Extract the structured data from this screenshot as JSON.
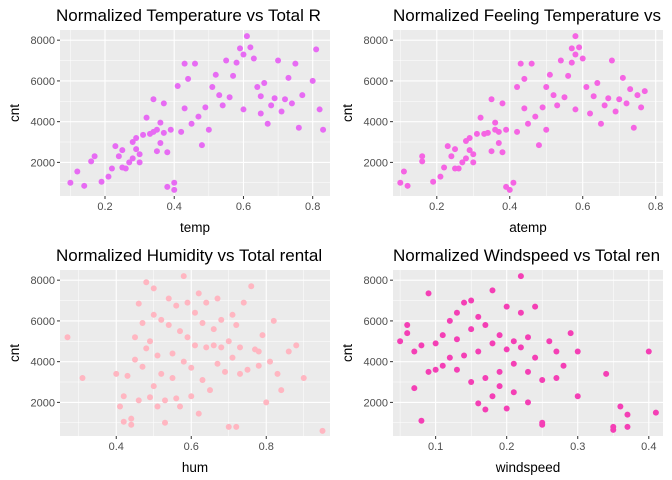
{
  "chart_data": [
    {
      "type": "scatter",
      "title": "Normalized Temperature vs Total R",
      "xlabel": "temp",
      "ylabel": "cnt",
      "xlim": [
        0.07,
        0.85
      ],
      "ylim": [
        350,
        8500
      ],
      "xticks": [
        0.2,
        0.4,
        0.6,
        0.8
      ],
      "xtick_labels": [
        "0.2",
        "0.4",
        "0.6",
        "0.8"
      ],
      "yticks": [
        2000,
        4000,
        6000,
        8000
      ],
      "ytick_labels": [
        "2000",
        "4000",
        "6000",
        "8000"
      ],
      "grid": true,
      "color": "#E76BF3",
      "points": [
        [
          0.1,
          1000
        ],
        [
          0.12,
          1550
        ],
        [
          0.14,
          850
        ],
        [
          0.16,
          2050
        ],
        [
          0.17,
          2300
        ],
        [
          0.19,
          1050
        ],
        [
          0.21,
          1300
        ],
        [
          0.22,
          1700
        ],
        [
          0.23,
          2800
        ],
        [
          0.24,
          2300
        ],
        [
          0.25,
          1750
        ],
        [
          0.25,
          2600
        ],
        [
          0.26,
          1700
        ],
        [
          0.27,
          2000
        ],
        [
          0.28,
          2200
        ],
        [
          0.28,
          3000
        ],
        [
          0.29,
          3200
        ],
        [
          0.29,
          2650
        ],
        [
          0.3,
          2400
        ],
        [
          0.3,
          2000
        ],
        [
          0.31,
          3350
        ],
        [
          0.32,
          4200
        ],
        [
          0.33,
          3400
        ],
        [
          0.34,
          3500
        ],
        [
          0.34,
          5100
        ],
        [
          0.35,
          2550
        ],
        [
          0.35,
          3600
        ],
        [
          0.36,
          3950
        ],
        [
          0.36,
          2950
        ],
        [
          0.37,
          3450
        ],
        [
          0.37,
          4900
        ],
        [
          0.38,
          2500
        ],
        [
          0.38,
          800
        ],
        [
          0.39,
          3600
        ],
        [
          0.4,
          650
        ],
        [
          0.4,
          1000
        ],
        [
          0.41,
          5750
        ],
        [
          0.42,
          3500
        ],
        [
          0.43,
          6850
        ],
        [
          0.43,
          4650
        ],
        [
          0.44,
          6100
        ],
        [
          0.45,
          3900
        ],
        [
          0.46,
          6850
        ],
        [
          0.47,
          4250
        ],
        [
          0.48,
          2850
        ],
        [
          0.49,
          4700
        ],
        [
          0.5,
          3600
        ],
        [
          0.51,
          5700
        ],
        [
          0.52,
          6300
        ],
        [
          0.53,
          5300
        ],
        [
          0.54,
          4800
        ],
        [
          0.55,
          7000
        ],
        [
          0.56,
          5200
        ],
        [
          0.57,
          6250
        ],
        [
          0.58,
          6900
        ],
        [
          0.59,
          7600
        ],
        [
          0.6,
          4600
        ],
        [
          0.6,
          7300
        ],
        [
          0.61,
          8200
        ],
        [
          0.62,
          7650
        ],
        [
          0.63,
          7100
        ],
        [
          0.64,
          5700
        ],
        [
          0.65,
          4400
        ],
        [
          0.65,
          5250
        ],
        [
          0.66,
          5900
        ],
        [
          0.67,
          3900
        ],
        [
          0.68,
          4800
        ],
        [
          0.69,
          5150
        ],
        [
          0.7,
          7000
        ],
        [
          0.71,
          4500
        ],
        [
          0.72,
          5100
        ],
        [
          0.73,
          6150
        ],
        [
          0.74,
          4900
        ],
        [
          0.75,
          6850
        ],
        [
          0.76,
          3700
        ],
        [
          0.77,
          5300
        ],
        [
          0.8,
          6000
        ],
        [
          0.81,
          7550
        ],
        [
          0.82,
          4600
        ],
        [
          0.83,
          3600
        ]
      ]
    },
    {
      "type": "scatter",
      "title": "Normalized Feeling Temperature vs",
      "xlabel": "atemp",
      "ylabel": "cnt",
      "xlim": [
        0.08,
        0.82
      ],
      "ylim": [
        350,
        8500
      ],
      "xticks": [
        0.2,
        0.4,
        0.6,
        0.8
      ],
      "xtick_labels": [
        "0.2",
        "0.4",
        "0.6",
        "0.8"
      ],
      "yticks": [
        2000,
        4000,
        6000,
        8000
      ],
      "ytick_labels": [
        "2000",
        "4000",
        "6000",
        "8000"
      ],
      "grid": true,
      "color": "#F564E3",
      "points": [
        [
          0.1,
          1000
        ],
        [
          0.11,
          1550
        ],
        [
          0.12,
          850
        ],
        [
          0.16,
          2050
        ],
        [
          0.16,
          2300
        ],
        [
          0.19,
          1050
        ],
        [
          0.21,
          1300
        ],
        [
          0.22,
          1750
        ],
        [
          0.23,
          2800
        ],
        [
          0.24,
          2300
        ],
        [
          0.25,
          1700
        ],
        [
          0.25,
          2650
        ],
        [
          0.26,
          1700
        ],
        [
          0.27,
          2000
        ],
        [
          0.28,
          2200
        ],
        [
          0.28,
          3050
        ],
        [
          0.29,
          3200
        ],
        [
          0.29,
          2600
        ],
        [
          0.3,
          2400
        ],
        [
          0.3,
          2000
        ],
        [
          0.31,
          3400
        ],
        [
          0.32,
          4200
        ],
        [
          0.33,
          3400
        ],
        [
          0.34,
          3450
        ],
        [
          0.35,
          5100
        ],
        [
          0.35,
          2550
        ],
        [
          0.36,
          3600
        ],
        [
          0.36,
          3950
        ],
        [
          0.37,
          2950
        ],
        [
          0.37,
          3500
        ],
        [
          0.38,
          4900
        ],
        [
          0.38,
          2500
        ],
        [
          0.39,
          800
        ],
        [
          0.39,
          3600
        ],
        [
          0.4,
          650
        ],
        [
          0.41,
          1000
        ],
        [
          0.42,
          5700
        ],
        [
          0.42,
          3500
        ],
        [
          0.43,
          6850
        ],
        [
          0.44,
          4650
        ],
        [
          0.44,
          6100
        ],
        [
          0.45,
          3900
        ],
        [
          0.46,
          6850
        ],
        [
          0.47,
          4250
        ],
        [
          0.48,
          2850
        ],
        [
          0.49,
          4700
        ],
        [
          0.5,
          3600
        ],
        [
          0.5,
          5700
        ],
        [
          0.51,
          6300
        ],
        [
          0.52,
          5300
        ],
        [
          0.53,
          4800
        ],
        [
          0.54,
          7000
        ],
        [
          0.55,
          5200
        ],
        [
          0.56,
          6250
        ],
        [
          0.57,
          6900
        ],
        [
          0.57,
          7600
        ],
        [
          0.58,
          4600
        ],
        [
          0.58,
          7300
        ],
        [
          0.58,
          8200
        ],
        [
          0.59,
          7650
        ],
        [
          0.6,
          7100
        ],
        [
          0.61,
          5700
        ],
        [
          0.62,
          4400
        ],
        [
          0.63,
          5250
        ],
        [
          0.64,
          5900
        ],
        [
          0.65,
          3900
        ],
        [
          0.66,
          4800
        ],
        [
          0.67,
          5150
        ],
        [
          0.68,
          7000
        ],
        [
          0.69,
          4500
        ],
        [
          0.7,
          5100
        ],
        [
          0.71,
          6150
        ],
        [
          0.72,
          4900
        ],
        [
          0.73,
          5600
        ],
        [
          0.74,
          3700
        ],
        [
          0.75,
          5300
        ],
        [
          0.76,
          4700
        ],
        [
          0.77,
          5500
        ]
      ]
    },
    {
      "type": "scatter",
      "title": "Normalized Humidity vs Total rental",
      "xlabel": "hum",
      "ylabel": "cnt",
      "xlim": [
        0.25,
        0.97
      ],
      "ylim": [
        350,
        8500
      ],
      "xticks": [
        0.4,
        0.6,
        0.8
      ],
      "xtick_labels": [
        "0.4",
        "0.6",
        "0.8"
      ],
      "yticks": [
        2000,
        4000,
        6000,
        8000
      ],
      "ytick_labels": [
        "2000",
        "4000",
        "6000",
        "8000"
      ],
      "grid": true,
      "color": "#FFB6C1",
      "points": [
        [
          0.27,
          5200
        ],
        [
          0.31,
          3200
        ],
        [
          0.4,
          3400
        ],
        [
          0.41,
          1800
        ],
        [
          0.42,
          2300
        ],
        [
          0.42,
          1050
        ],
        [
          0.43,
          3300
        ],
        [
          0.44,
          900
        ],
        [
          0.44,
          1200
        ],
        [
          0.45,
          5200
        ],
        [
          0.45,
          4100
        ],
        [
          0.46,
          6850
        ],
        [
          0.46,
          2100
        ],
        [
          0.47,
          5900
        ],
        [
          0.47,
          3750
        ],
        [
          0.48,
          7900
        ],
        [
          0.48,
          4650
        ],
        [
          0.49,
          2250
        ],
        [
          0.49,
          5000
        ],
        [
          0.5,
          7600
        ],
        [
          0.5,
          6300
        ],
        [
          0.5,
          2800
        ],
        [
          0.51,
          1800
        ],
        [
          0.51,
          4300
        ],
        [
          0.52,
          6050
        ],
        [
          0.52,
          3400
        ],
        [
          0.53,
          2100
        ],
        [
          0.53,
          1000
        ],
        [
          0.54,
          7100
        ],
        [
          0.54,
          5800
        ],
        [
          0.55,
          4400
        ],
        [
          0.55,
          3200
        ],
        [
          0.56,
          6750
        ],
        [
          0.56,
          2200
        ],
        [
          0.57,
          5500
        ],
        [
          0.57,
          1800
        ],
        [
          0.58,
          8200
        ],
        [
          0.58,
          4000
        ],
        [
          0.59,
          6900
        ],
        [
          0.59,
          5200
        ],
        [
          0.6,
          3700
        ],
        [
          0.6,
          2300
        ],
        [
          0.61,
          6400
        ],
        [
          0.61,
          4800
        ],
        [
          0.62,
          7350
        ],
        [
          0.62,
          1450
        ],
        [
          0.63,
          5900
        ],
        [
          0.63,
          3100
        ],
        [
          0.64,
          4700
        ],
        [
          0.64,
          6900
        ],
        [
          0.65,
          2600
        ],
        [
          0.66,
          5600
        ],
        [
          0.66,
          4800
        ],
        [
          0.67,
          7100
        ],
        [
          0.67,
          3900
        ],
        [
          0.68,
          6050
        ],
        [
          0.68,
          4700
        ],
        [
          0.69,
          3500
        ],
        [
          0.7,
          800
        ],
        [
          0.7,
          5000
        ],
        [
          0.71,
          6300
        ],
        [
          0.71,
          4200
        ],
        [
          0.72,
          800
        ],
        [
          0.72,
          5800
        ],
        [
          0.73,
          4700
        ],
        [
          0.73,
          3400
        ],
        [
          0.74,
          6900
        ],
        [
          0.75,
          3600
        ],
        [
          0.76,
          7700
        ],
        [
          0.77,
          4600
        ],
        [
          0.78,
          4500
        ],
        [
          0.78,
          3800
        ],
        [
          0.79,
          5300
        ],
        [
          0.8,
          2000
        ],
        [
          0.81,
          4000
        ],
        [
          0.82,
          6000
        ],
        [
          0.83,
          3400
        ],
        [
          0.84,
          2600
        ],
        [
          0.86,
          4500
        ],
        [
          0.88,
          4800
        ],
        [
          0.9,
          3200
        ],
        [
          0.95,
          600
        ]
      ]
    },
    {
      "type": "scatter",
      "title": "Normalized Windspeed vs Total ren",
      "xlabel": "windspeed",
      "ylabel": "cnt",
      "xlim": [
        0.04,
        0.42
      ],
      "ylim": [
        350,
        8500
      ],
      "xticks": [
        0.1,
        0.2,
        0.3,
        0.4
      ],
      "xtick_labels": [
        "0.1",
        "0.2",
        "0.3",
        "0.4"
      ],
      "yticks": [
        2000,
        4000,
        6000,
        8000
      ],
      "ytick_labels": [
        "2000",
        "4000",
        "6000",
        "8000"
      ],
      "grid": true,
      "color": "#F43FB5",
      "points": [
        [
          0.05,
          5000
        ],
        [
          0.06,
          5800
        ],
        [
          0.06,
          5400
        ],
        [
          0.07,
          2700
        ],
        [
          0.07,
          4500
        ],
        [
          0.08,
          4800
        ],
        [
          0.08,
          1100
        ],
        [
          0.09,
          3500
        ],
        [
          0.09,
          7350
        ],
        [
          0.1,
          3600
        ],
        [
          0.1,
          4900
        ],
        [
          0.11,
          5300
        ],
        [
          0.11,
          3800
        ],
        [
          0.12,
          6000
        ],
        [
          0.12,
          4200
        ],
        [
          0.13,
          6400
        ],
        [
          0.13,
          3600
        ],
        [
          0.13,
          5100
        ],
        [
          0.14,
          6900
        ],
        [
          0.14,
          4300
        ],
        [
          0.15,
          7000
        ],
        [
          0.15,
          5600
        ],
        [
          0.15,
          3000
        ],
        [
          0.16,
          6200
        ],
        [
          0.16,
          1950
        ],
        [
          0.16,
          4500
        ],
        [
          0.17,
          5800
        ],
        [
          0.17,
          3200
        ],
        [
          0.17,
          1650
        ],
        [
          0.18,
          4900
        ],
        [
          0.18,
          2300
        ],
        [
          0.18,
          7500
        ],
        [
          0.19,
          3500
        ],
        [
          0.19,
          5300
        ],
        [
          0.19,
          2800
        ],
        [
          0.2,
          6700
        ],
        [
          0.2,
          4600
        ],
        [
          0.2,
          1700
        ],
        [
          0.21,
          3900
        ],
        [
          0.21,
          5000
        ],
        [
          0.21,
          2500
        ],
        [
          0.22,
          8200
        ],
        [
          0.22,
          6400
        ],
        [
          0.22,
          4700
        ],
        [
          0.23,
          3500
        ],
        [
          0.23,
          5200
        ],
        [
          0.23,
          2000
        ],
        [
          0.24,
          4200
        ],
        [
          0.24,
          6700
        ],
        [
          0.25,
          3100
        ],
        [
          0.25,
          900
        ],
        [
          0.25,
          1000
        ],
        [
          0.26,
          5000
        ],
        [
          0.27,
          4500
        ],
        [
          0.27,
          3200
        ],
        [
          0.28,
          3800
        ],
        [
          0.29,
          5400
        ],
        [
          0.3,
          2300
        ],
        [
          0.3,
          4500
        ],
        [
          0.34,
          3400
        ],
        [
          0.35,
          650
        ],
        [
          0.35,
          800
        ],
        [
          0.36,
          1800
        ],
        [
          0.37,
          800
        ],
        [
          0.37,
          1400
        ],
        [
          0.4,
          4500
        ],
        [
          0.41,
          1500
        ]
      ]
    }
  ]
}
